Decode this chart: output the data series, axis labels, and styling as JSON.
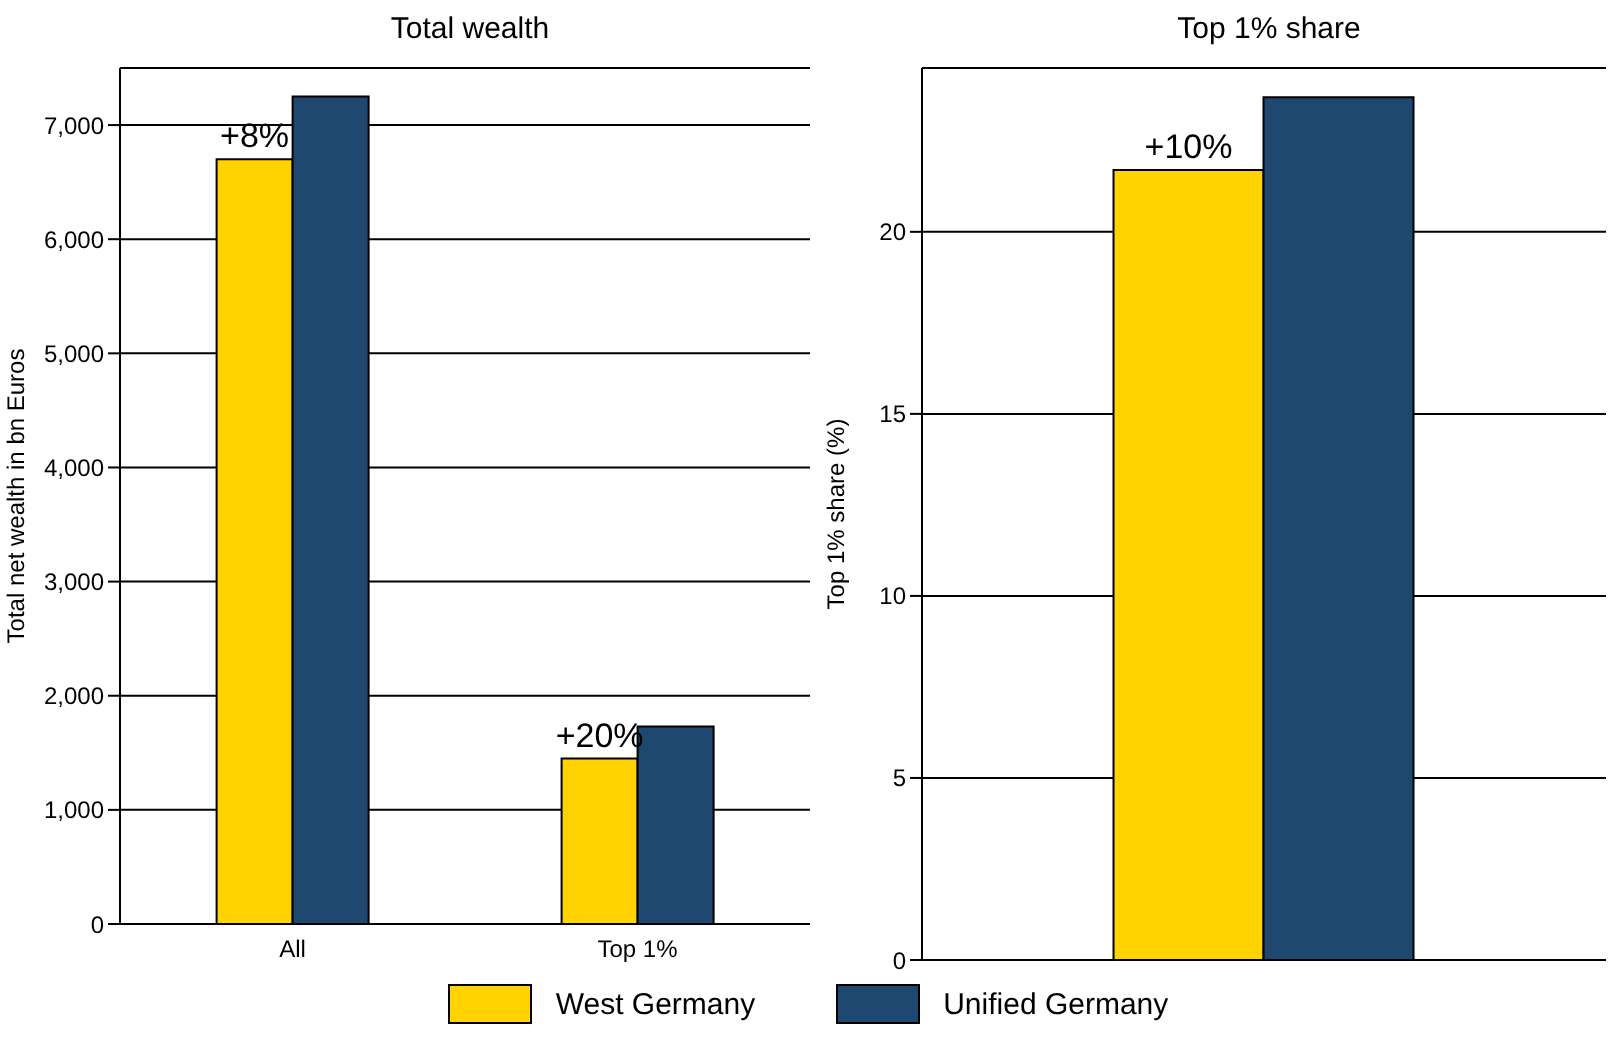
{
  "chart_data": [
    {
      "type": "bar",
      "title": "Total wealth",
      "ylabel": "Total net wealth in bn Euros",
      "categories": [
        "All",
        "Top 1%"
      ],
      "series": [
        {
          "name": "West Germany",
          "color": "#ffd200",
          "values": [
            6700,
            1450
          ]
        },
        {
          "name": "Unified Germany",
          "color": "#1f4870",
          "values": [
            7250,
            1730
          ]
        }
      ],
      "ylim": [
        0,
        7500
      ],
      "yticks": [
        0,
        {
          "value": 1000,
          "label": "1,000"
        },
        {
          "value": 2000,
          "label": "2,000"
        },
        {
          "value": 3000,
          "label": "3,000"
        },
        {
          "value": 4000,
          "label": "4,000"
        },
        {
          "value": 5000,
          "label": "5,000"
        },
        {
          "value": 6000,
          "label": "6,000"
        },
        {
          "value": 7000,
          "label": "7,000"
        }
      ],
      "grid": "y",
      "legend": "bottom",
      "annotations": [
        {
          "text": "+8%",
          "x": "All",
          "y": 6700
        },
        {
          "text": "+20%",
          "x": "Top 1%",
          "y": 1450
        }
      ]
    },
    {
      "type": "bar",
      "title": "Top 1% share",
      "ylabel": "Top 1% share (%)",
      "categories": [
        null
      ],
      "series": [
        {
          "color": "#ffd200",
          "values": [
            21.7
          ]
        },
        {
          "color": "#1f4870",
          "values": [
            23.7
          ]
        }
      ],
      "ylim": [
        0,
        24.5
      ],
      "yticks": [
        0,
        5,
        10,
        15,
        20
      ],
      "grid": "y",
      "annotations": [
        {
          "text": "+10%",
          "y": 21.7
        }
      ]
    }
  ]
}
